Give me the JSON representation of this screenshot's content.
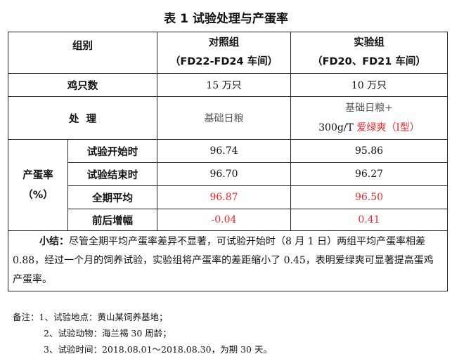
{
  "title": "表 1   试验处理与产蛋率",
  "header": {
    "group_label": "组别",
    "control_name": "对照组",
    "control_sub": "（FD22-FD24 车间）",
    "trial_name": "实验组",
    "trial_sub": "（FD20、FD21 车间）"
  },
  "count_row": {
    "label": "鸡只数",
    "control": "15 万只",
    "trial": "10 万只"
  },
  "treatment_row": {
    "label": "处  理",
    "control": "基础日粮",
    "trial_line1": "基础日粮+",
    "trial_line2_prefix": "300g/T ",
    "trial_line2_product": "爱绿爽（Ⅰ型）"
  },
  "rate_group": {
    "label_line1": "产蛋率",
    "label_line2": "（%）"
  },
  "rate_rows": [
    {
      "label": "试验开始时",
      "control": "96.74",
      "trial": "95.86",
      "highlight": false
    },
    {
      "label": "试验结束时",
      "control": "96.70",
      "trial": "96.27",
      "highlight": false
    },
    {
      "label": "全期平均",
      "control": "96.87",
      "trial": "96.50",
      "highlight": true
    },
    {
      "label": "前后增幅",
      "control": "-0.04",
      "trial": "0.41",
      "highlight": true
    }
  ],
  "summary": {
    "lead": "小结：",
    "text": "尽管全期平均产蛋率差异不显著，可试验开始时（8 月 1 日）两组平均产蛋率相差 0.88，经过一个月的饲养试验，实验组将产蛋率的差距缩小了 0.45，表明爱绿爽可显著提高蛋鸡产蛋率。"
  },
  "notes": [
    "备注：1、试验地点：黄山某饲养基地；",
    "2、试验动物：海兰褐 30 周龄；",
    "3、试验时间：2018.08.01～2018.08.30，为期 30 天。"
  ],
  "colors": {
    "highlight": "#e8262b"
  }
}
